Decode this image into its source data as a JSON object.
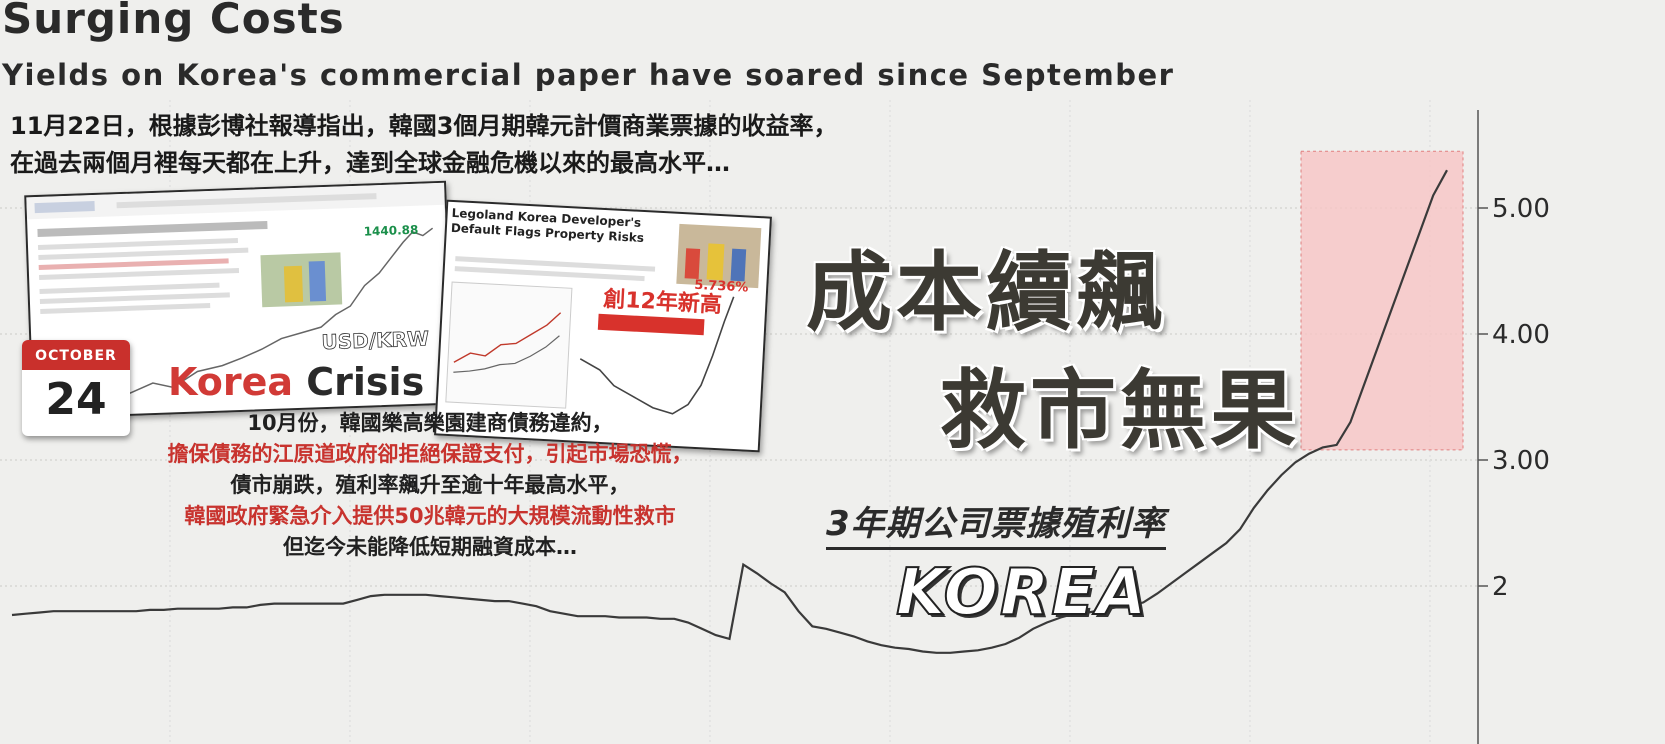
{
  "chart_data": {
    "type": "line",
    "title": "Surging Costs",
    "subtitle": "Yields on Korea's commercial paper have soared since September",
    "ylim": [
      1.5,
      5.5
    ],
    "yticks": [
      "5.00",
      "4.00",
      "3.00",
      "2"
    ],
    "grid": true,
    "series": [
      {
        "values": [
          1.77,
          1.78,
          1.79,
          1.8,
          1.8,
          1.8,
          1.8,
          1.8,
          1.8,
          1.8,
          1.81,
          1.81,
          1.82,
          1.82,
          1.82,
          1.82,
          1.83,
          1.83,
          1.85,
          1.86,
          1.86,
          1.86,
          1.86,
          1.86,
          1.86,
          1.89,
          1.92,
          1.93,
          1.93,
          1.93,
          1.93,
          1.92,
          1.91,
          1.9,
          1.89,
          1.88,
          1.88,
          1.86,
          1.84,
          1.8,
          1.78,
          1.76,
          1.76,
          1.76,
          1.75,
          1.75,
          1.75,
          1.74,
          1.74,
          1.71,
          1.66,
          1.61,
          1.58,
          2.17,
          2.1,
          2.02,
          1.95,
          1.8,
          1.68,
          1.66,
          1.63,
          1.6,
          1.56,
          1.53,
          1.51,
          1.5,
          1.48,
          1.47,
          1.47,
          1.48,
          1.49,
          1.51,
          1.54,
          1.59,
          1.66,
          1.71,
          1.75,
          1.78,
          1.79,
          1.81,
          1.83,
          1.84,
          1.87,
          1.94,
          2.02,
          2.1,
          2.18,
          2.26,
          2.34,
          2.45,
          2.62,
          2.76,
          2.88,
          2.98,
          3.05,
          3.1,
          3.12,
          3.3,
          3.6,
          3.9,
          4.2,
          4.5,
          4.8,
          5.1,
          5.3
        ],
        "highlight": {
          "from_index": 94,
          "to_index": 104,
          "y_range": [
            3.08,
            5.45
          ]
        }
      }
    ]
  },
  "intro_lines": [
    "11月22日，根據彭博社報導指出，韓國3個月期韓元計價商業票據的收益率，",
    "在過去兩個月裡每天都在上升，達到全球金融危機以來的最高水平…"
  ],
  "calendar": {
    "month": "OCTOBER",
    "day": "24"
  },
  "crisis_label": {
    "korea": "Korea",
    "crisis": "Crisis"
  },
  "thumb1": {
    "ticker": "USD/KRW",
    "value": "1440.88"
  },
  "thumb2": {
    "headline": "Legoland Korea Developer's Default Flags Property Risks",
    "badge": "創12年新高",
    "value": "5.736%"
  },
  "paragraph": {
    "line1": "10月份，韓國樂高樂園建商債務違約，",
    "line2": "擔保債務的江原道政府卻拒絕保證支付，引起市場恐慌，",
    "line3": "債市崩跌，殖利率飆升至逾十年最高水平，",
    "line4": "韓國政府緊急介入提供50兆韓元的大規模流動性救市",
    "line5": "但迄今未能降低短期融資成本…"
  },
  "headline1": "成本續飆",
  "headline2": "救市無果",
  "chart_caption": "3年期公司票據殖利率",
  "country_logo": "KOREA",
  "colors": {
    "line": "#3a3a3a",
    "highlight_fill": "#f7c4c4",
    "highlight_stroke": "#e08080",
    "text_red": "#c8332e",
    "calendar_red": "#c9302c"
  }
}
